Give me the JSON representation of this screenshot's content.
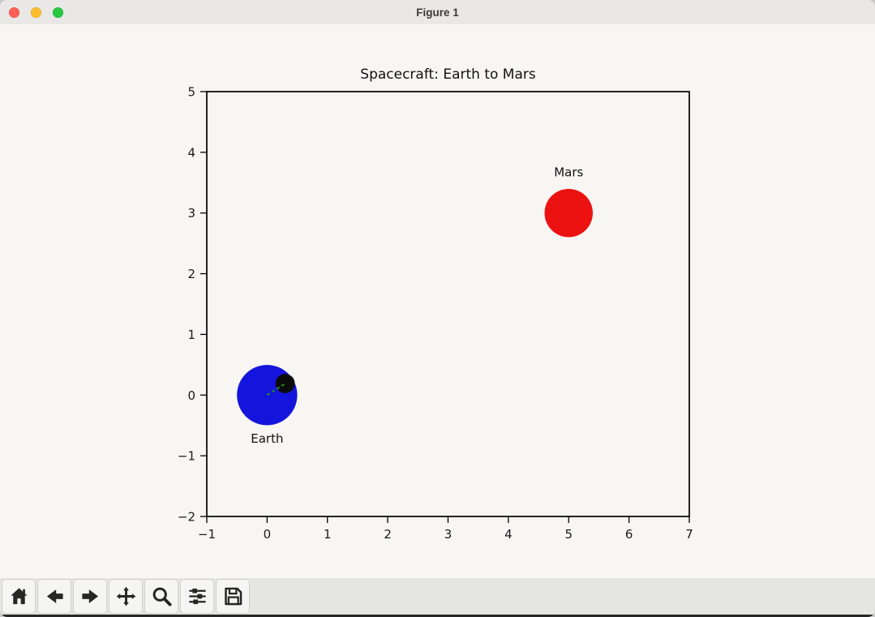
{
  "window": {
    "title": "Figure 1",
    "traffic_lights": [
      {
        "name": "close",
        "color": "#ff5f57"
      },
      {
        "name": "minimize",
        "color": "#febc2e"
      },
      {
        "name": "zoom",
        "color": "#28c840"
      }
    ]
  },
  "chart_data": {
    "type": "scatter",
    "title": "Spacecraft: Earth to Mars",
    "xlabel": "",
    "ylabel": "",
    "xlim": [
      -1,
      7
    ],
    "ylim": [
      -2,
      5
    ],
    "grid": false,
    "legend": null,
    "xticks": {
      "values": [
        -1,
        0,
        1,
        2,
        3,
        4,
        5,
        6,
        7
      ],
      "labels": [
        "−1",
        "0",
        "1",
        "2",
        "3",
        "4",
        "5",
        "6",
        "7"
      ]
    },
    "yticks": {
      "values": [
        -2,
        -1,
        0,
        1,
        2,
        3,
        4,
        5
      ],
      "labels": [
        "−2",
        "−1",
        "0",
        "1",
        "2",
        "3",
        "4",
        "5"
      ]
    },
    "bodies": [
      {
        "name": "Earth",
        "x": 0,
        "y": 0,
        "radius": 0.5,
        "color": "#1414dc",
        "label": "Earth",
        "label_x": 0,
        "label_y": -0.72
      },
      {
        "name": "Mars",
        "x": 5,
        "y": 3,
        "radius": 0.4,
        "color": "#ec1212",
        "label": "Mars",
        "label_x": 5,
        "label_y": 3.67
      }
    ],
    "spacecraft": {
      "x": 0.3,
      "y": 0.19,
      "radius": 0.16,
      "color": "#0b0b0b"
    },
    "trail": {
      "x": [
        0,
        0.3
      ],
      "y": [
        0,
        0.19
      ],
      "color": "#1f8c1f",
      "linestyle": "dashed"
    }
  },
  "toolbar": {
    "buttons": [
      {
        "name": "home",
        "icon": "home-icon"
      },
      {
        "name": "back",
        "icon": "arrow-left-icon"
      },
      {
        "name": "forward",
        "icon": "arrow-right-icon"
      },
      {
        "name": "pan",
        "icon": "move-icon"
      },
      {
        "name": "zoom",
        "icon": "magnifier-icon"
      },
      {
        "name": "configure-subplots",
        "icon": "sliders-icon"
      },
      {
        "name": "save",
        "icon": "floppy-icon"
      }
    ]
  }
}
